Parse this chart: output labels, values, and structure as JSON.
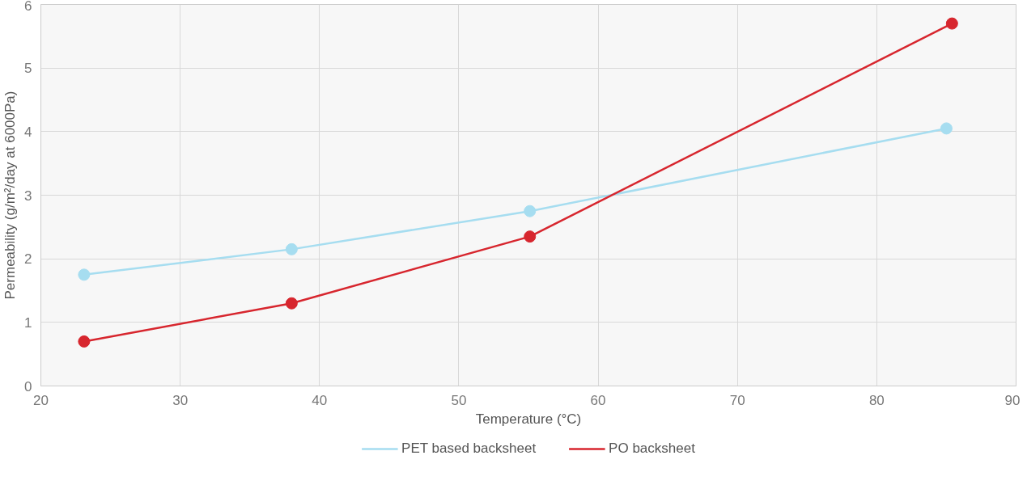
{
  "chart_data": {
    "type": "line",
    "xlabel": "Temperature (°C)",
    "ylabel": "Permeability (g/m²/day at 6000Pa)",
    "xlim": [
      20,
      90
    ],
    "xticks": [
      20,
      30,
      40,
      50,
      60,
      70,
      80,
      90
    ],
    "ylim": [
      0,
      6
    ],
    "yticks": [
      0,
      1,
      2,
      3,
      4,
      5,
      6
    ],
    "grid": true,
    "legend": "bottom",
    "marker": "circle",
    "line_style": "solid",
    "series": [
      {
        "name": "PET based backsheet",
        "color": "#a6ddf0",
        "x": [
          23.1,
          38.0,
          55.1,
          85.0
        ],
        "values": [
          1.75,
          2.15,
          2.75,
          4.05
        ]
      },
      {
        "name": "PO backsheet",
        "color": "#d7262e",
        "x": [
          23.1,
          38.0,
          55.1,
          85.4
        ],
        "values": [
          0.7,
          1.3,
          2.35,
          5.7
        ]
      }
    ]
  }
}
